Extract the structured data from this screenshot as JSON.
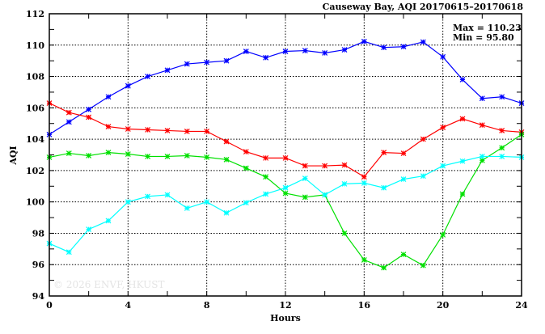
{
  "chart_data": {
    "type": "line",
    "title": "Causeway Bay, AQI 20170615–20170618",
    "xlabel": "Hours",
    "ylabel": "AQI",
    "xlim": [
      0,
      24
    ],
    "ylim": [
      94,
      112
    ],
    "xticks": [
      0,
      4,
      8,
      12,
      16,
      20,
      24
    ],
    "yticks": [
      94,
      96,
      98,
      100,
      102,
      104,
      106,
      108,
      110,
      112
    ],
    "grid": true,
    "stats": {
      "max_label": "Max = 110.23",
      "min_label": "Min =  95.80"
    },
    "watermark": "© 2026  ENVF, HKUST",
    "x": [
      0,
      1,
      2,
      3,
      4,
      5,
      6,
      7,
      8,
      9,
      10,
      11,
      12,
      13,
      14,
      15,
      16,
      17,
      18,
      19,
      20,
      21,
      22,
      23,
      24
    ],
    "series": [
      {
        "name": "blue",
        "color": "#0000ff",
        "values": [
          104.3,
          105.1,
          105.9,
          106.7,
          107.4,
          108.0,
          108.4,
          108.8,
          108.9,
          109.0,
          109.6,
          109.2,
          109.6,
          109.65,
          109.5,
          109.7,
          110.23,
          109.85,
          109.9,
          110.2,
          109.25,
          107.8,
          106.6,
          106.7,
          106.3
        ]
      },
      {
        "name": "red",
        "color": "#ff0000",
        "values": [
          106.3,
          105.7,
          105.4,
          104.8,
          104.65,
          104.6,
          104.55,
          104.5,
          104.5,
          103.85,
          103.2,
          102.8,
          102.8,
          102.3,
          102.3,
          102.35,
          101.6,
          103.15,
          103.1,
          104.0,
          104.75,
          105.3,
          104.9,
          104.55,
          104.45
        ]
      },
      {
        "name": "green",
        "color": "#00e000",
        "values": [
          102.85,
          103.1,
          102.95,
          103.15,
          103.05,
          102.9,
          102.9,
          102.95,
          102.85,
          102.7,
          102.15,
          101.6,
          100.55,
          100.3,
          100.45,
          98.0,
          96.3,
          95.8,
          96.65,
          95.95,
          97.9,
          100.5,
          102.65,
          103.45,
          104.3
        ]
      },
      {
        "name": "cyan",
        "color": "#00ffff",
        "values": [
          97.35,
          96.8,
          98.25,
          98.8,
          100.0,
          100.35,
          100.45,
          99.6,
          100.0,
          99.3,
          99.95,
          100.5,
          100.9,
          101.5,
          100.45,
          101.15,
          101.2,
          100.9,
          101.45,
          101.65,
          102.3,
          102.6,
          102.9,
          102.9,
          102.85
        ]
      }
    ]
  }
}
